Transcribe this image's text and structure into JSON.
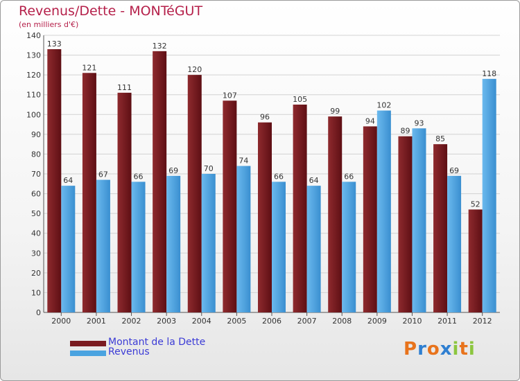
{
  "chart_data": {
    "type": "bar",
    "title": "Revenus/Dette - MONTéGUT",
    "subtitle": "(en milliers d'€)",
    "categories": [
      "2000",
      "2001",
      "2002",
      "2003",
      "2004",
      "2005",
      "2006",
      "2007",
      "2008",
      "2009",
      "2010",
      "2011",
      "2012"
    ],
    "series": [
      {
        "name": "Montant de la Dette",
        "color": "#7a1a1f",
        "values": [
          133,
          121,
          111,
          132,
          120,
          107,
          96,
          105,
          99,
          94,
          89,
          85,
          52
        ]
      },
      {
        "name": "Revenus",
        "color": "#4aa3e0",
        "values": [
          64,
          67,
          66,
          69,
          70,
          74,
          66,
          64,
          66,
          102,
          93,
          69,
          118
        ]
      }
    ],
    "ylim": [
      0,
      140
    ],
    "yticks": [
      0,
      10,
      20,
      30,
      40,
      50,
      60,
      70,
      80,
      90,
      100,
      110,
      120,
      130,
      140
    ],
    "grid": true,
    "legend": "bottom-left"
  },
  "logo": {
    "letters": [
      "P",
      "r",
      "o",
      "x",
      "i",
      "t",
      "i"
    ],
    "colors": [
      "#e8731c",
      "#2f7fd1",
      "#e8731c",
      "#2f7fd1",
      "#8cc63f",
      "#e8731c",
      "#8cc63f"
    ]
  }
}
